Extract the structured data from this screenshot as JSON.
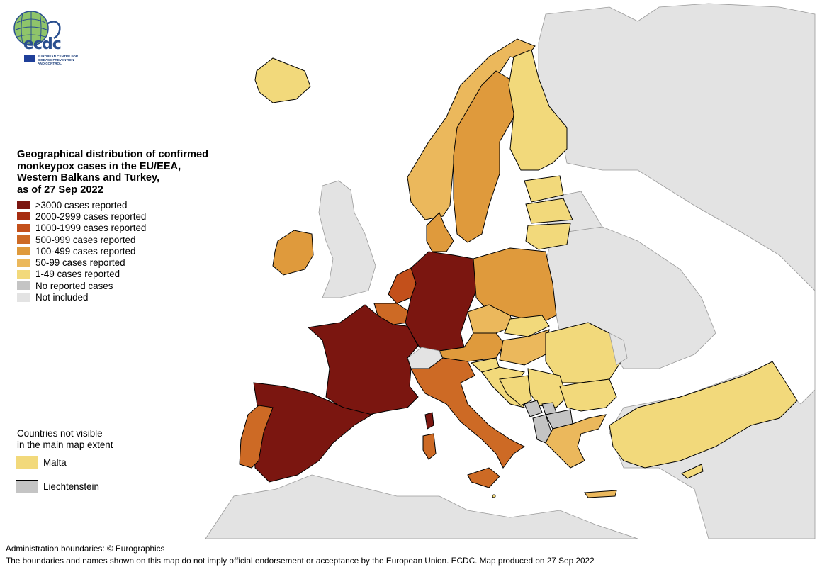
{
  "title_lines": [
    "Geographical distribution of confirmed",
    "monkeypox cases in the EU/EEA,",
    "Western Balkans and Turkey,",
    "as of 27 Sep 2022"
  ],
  "logo": {
    "text": "ecdc",
    "org_lines": [
      "EUROPEAN CENTRE FOR",
      "DISEASE PREVENTION",
      "AND CONTROL"
    ]
  },
  "legend": [
    {
      "label": "≥3000 cases reported",
      "color": "#7b1610"
    },
    {
      "label": "2000-2999 cases reported",
      "color": "#a62d10"
    },
    {
      "label": "1000-1999 cases reported",
      "color": "#c3501b"
    },
    {
      "label": "500-999 cases reported",
      "color": "#cd6a25"
    },
    {
      "label": "100-499 cases reported",
      "color": "#df9a3c"
    },
    {
      "label": "50-99 cases reported",
      "color": "#ebb85c"
    },
    {
      "label": "1-49 cases reported",
      "color": "#f2d97b"
    },
    {
      "label": "No reported cases",
      "color": "#c4c4c4"
    },
    {
      "label": "Not included",
      "color": "#e3e3e3"
    }
  ],
  "not_visible": {
    "heading_lines": [
      "Countries not visible",
      "in the main map extent"
    ],
    "items": [
      {
        "label": "Malta",
        "color": "#f2d97b"
      },
      {
        "label": "Liechtenstein",
        "color": "#c4c4c4"
      }
    ]
  },
  "footer": {
    "attribution": "Administration boundaries: © Eurographics",
    "disclaimer": "The boundaries and names shown on this map do not imply official endorsement or acceptance by the European Union. ECDC. Map produced on 27 Sep 2022"
  },
  "regions": [
    {
      "name": "France",
      "category": "≥3000 cases reported"
    },
    {
      "name": "Spain",
      "category": "≥3000 cases reported"
    },
    {
      "name": "Germany",
      "category": "≥3000 cases reported"
    },
    {
      "name": "Netherlands",
      "category": "1000-1999 cases reported"
    },
    {
      "name": "Portugal",
      "category": "500-999 cases reported"
    },
    {
      "name": "Italy",
      "category": "500-999 cases reported"
    },
    {
      "name": "Belgium",
      "category": "500-999 cases reported"
    },
    {
      "name": "Sweden",
      "category": "100-499 cases reported"
    },
    {
      "name": "Norway",
      "category": "50-99 cases reported"
    },
    {
      "name": "Ireland",
      "category": "100-499 cases reported"
    },
    {
      "name": "Poland",
      "category": "100-499 cases reported"
    },
    {
      "name": "Denmark",
      "category": "100-499 cases reported"
    },
    {
      "name": "Austria",
      "category": "100-499 cases reported"
    },
    {
      "name": "Czechia",
      "category": "50-99 cases reported"
    },
    {
      "name": "Hungary",
      "category": "50-99 cases reported"
    },
    {
      "name": "Greece",
      "category": "50-99 cases reported"
    },
    {
      "name": "Finland",
      "category": "1-49 cases reported"
    },
    {
      "name": "Iceland",
      "category": "1-49 cases reported"
    },
    {
      "name": "Estonia",
      "category": "1-49 cases reported"
    },
    {
      "name": "Latvia",
      "category": "1-49 cases reported"
    },
    {
      "name": "Lithuania",
      "category": "1-49 cases reported"
    },
    {
      "name": "Slovakia",
      "category": "1-49 cases reported"
    },
    {
      "name": "Slovenia",
      "category": "1-49 cases reported"
    },
    {
      "name": "Croatia",
      "category": "1-49 cases reported"
    },
    {
      "name": "Bosnia and Herzegovina",
      "category": "1-49 cases reported"
    },
    {
      "name": "Serbia",
      "category": "1-49 cases reported"
    },
    {
      "name": "Romania",
      "category": "1-49 cases reported"
    },
    {
      "name": "Bulgaria",
      "category": "1-49 cases reported"
    },
    {
      "name": "Turkey",
      "category": "1-49 cases reported"
    },
    {
      "name": "Cyprus",
      "category": "1-49 cases reported"
    },
    {
      "name": "Malta",
      "category": "1-49 cases reported"
    },
    {
      "name": "Montenegro",
      "category": "No reported cases"
    },
    {
      "name": "Albania",
      "category": "No reported cases"
    },
    {
      "name": "North Macedonia",
      "category": "No reported cases"
    },
    {
      "name": "Kosovo",
      "category": "No reported cases"
    },
    {
      "name": "Liechtenstein",
      "category": "No reported cases"
    },
    {
      "name": "Switzerland",
      "category": "Not included"
    },
    {
      "name": "United Kingdom",
      "category": "Not included"
    },
    {
      "name": "Belarus",
      "category": "Not included"
    },
    {
      "name": "Ukraine",
      "category": "Not included"
    },
    {
      "name": "Russia",
      "category": "Not included"
    },
    {
      "name": "Moldova",
      "category": "Not included"
    }
  ]
}
